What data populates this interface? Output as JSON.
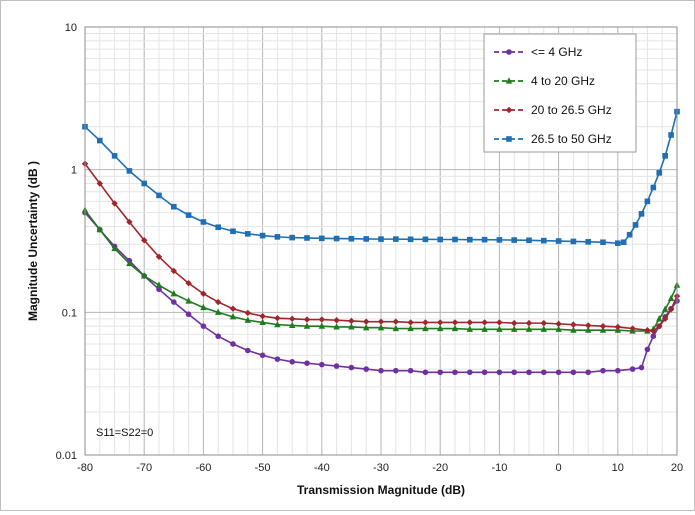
{
  "chart_data": {
    "type": "line",
    "xlabel": "Transmission  Magnitude  (dB)",
    "ylabel": "Magnitude  Uncertainty  (dB )",
    "xlim": [
      -80,
      20
    ],
    "ylim": [
      0.01,
      10
    ],
    "yscale": "log",
    "grid": true,
    "legend_position": "top-right",
    "x_ticks": [
      "-80",
      "-70",
      "-60",
      "-50",
      "-40",
      "-30",
      "-20",
      "-10",
      "0",
      "10",
      "20"
    ],
    "y_ticks": [
      "10",
      "1",
      "0.1",
      "0.01"
    ],
    "annotation": "S11=S22=0",
    "series": [
      {
        "name": "<= 4 GHz",
        "color": "#7030a0",
        "marker": "circle",
        "x": [
          -80,
          -77.5,
          -75,
          -72.5,
          -70,
          -67.5,
          -65,
          -62.5,
          -60,
          -57.5,
          -55,
          -52.5,
          -50,
          -47.5,
          -45,
          -42.5,
          -40,
          -37.5,
          -35,
          -32.5,
          -30,
          -27.5,
          -25,
          -22.5,
          -20,
          -17.5,
          -15,
          -12.5,
          -10,
          -7.5,
          -5,
          -2.5,
          0,
          2.5,
          5,
          7.5,
          10,
          12.5,
          14,
          15,
          16,
          17,
          18,
          19,
          20
        ],
        "values": [
          0.5,
          0.38,
          0.29,
          0.23,
          0.18,
          0.145,
          0.118,
          0.097,
          0.08,
          0.068,
          0.06,
          0.054,
          0.05,
          0.047,
          0.045,
          0.044,
          0.043,
          0.042,
          0.041,
          0.04,
          0.039,
          0.039,
          0.039,
          0.038,
          0.038,
          0.038,
          0.038,
          0.038,
          0.038,
          0.038,
          0.038,
          0.038,
          0.038,
          0.038,
          0.038,
          0.039,
          0.039,
          0.04,
          0.041,
          0.055,
          0.068,
          0.08,
          0.093,
          0.106,
          0.12
        ]
      },
      {
        "name": "4 to 20 GHz",
        "color": "#1e7b1e",
        "marker": "triangle",
        "x": [
          -80,
          -77.5,
          -75,
          -72.5,
          -70,
          -67.5,
          -65,
          -62.5,
          -60,
          -57.5,
          -55,
          -52.5,
          -50,
          -47.5,
          -45,
          -42.5,
          -40,
          -37.5,
          -35,
          -32.5,
          -30,
          -27.5,
          -25,
          -22.5,
          -20,
          -17.5,
          -15,
          -12.5,
          -10,
          -7.5,
          -5,
          -2.5,
          0,
          2.5,
          5,
          7.5,
          10,
          12.5,
          15,
          16,
          17,
          18,
          19,
          20
        ],
        "values": [
          0.52,
          0.38,
          0.28,
          0.22,
          0.18,
          0.155,
          0.135,
          0.12,
          0.108,
          0.1,
          0.093,
          0.088,
          0.085,
          0.082,
          0.081,
          0.08,
          0.08,
          0.079,
          0.079,
          0.078,
          0.078,
          0.077,
          0.077,
          0.077,
          0.077,
          0.077,
          0.076,
          0.076,
          0.076,
          0.076,
          0.076,
          0.076,
          0.076,
          0.075,
          0.075,
          0.075,
          0.075,
          0.074,
          0.074,
          0.076,
          0.09,
          0.105,
          0.125,
          0.155
        ]
      },
      {
        "name": "20 to 26.5 GHz",
        "color": "#a0262c",
        "marker": "diamond",
        "x": [
          -80,
          -77.5,
          -75,
          -72.5,
          -70,
          -67.5,
          -65,
          -62.5,
          -60,
          -57.5,
          -55,
          -52.5,
          -50,
          -47.5,
          -45,
          -42.5,
          -40,
          -37.5,
          -35,
          -32.5,
          -30,
          -27.5,
          -25,
          -22.5,
          -20,
          -17.5,
          -15,
          -12.5,
          -10,
          -7.5,
          -5,
          -2.5,
          0,
          2.5,
          5,
          7.5,
          10,
          12.5,
          15,
          16,
          17,
          18,
          19,
          20
        ],
        "values": [
          1.1,
          0.8,
          0.58,
          0.43,
          0.32,
          0.245,
          0.195,
          0.16,
          0.135,
          0.118,
          0.106,
          0.099,
          0.094,
          0.091,
          0.09,
          0.089,
          0.089,
          0.088,
          0.087,
          0.086,
          0.086,
          0.086,
          0.085,
          0.085,
          0.085,
          0.085,
          0.085,
          0.085,
          0.085,
          0.084,
          0.084,
          0.084,
          0.083,
          0.082,
          0.081,
          0.08,
          0.079,
          0.077,
          0.075,
          0.074,
          0.08,
          0.09,
          0.105,
          0.13
        ]
      },
      {
        "name": "26.5 to 50 GHz",
        "color": "#1f6fb4",
        "marker": "square",
        "x": [
          -80,
          -77.5,
          -75,
          -72.5,
          -70,
          -67.5,
          -65,
          -62.5,
          -60,
          -57.5,
          -55,
          -52.5,
          -50,
          -47.5,
          -45,
          -42.5,
          -40,
          -37.5,
          -35,
          -32.5,
          -30,
          -27.5,
          -25,
          -22.5,
          -20,
          -17.5,
          -15,
          -12.5,
          -10,
          -7.5,
          -5,
          -2.5,
          0,
          2.5,
          5,
          7.5,
          10,
          11,
          12,
          13,
          14,
          15,
          16,
          17,
          18,
          19,
          20
        ],
        "values": [
          2.0,
          1.6,
          1.25,
          0.98,
          0.8,
          0.66,
          0.55,
          0.48,
          0.43,
          0.395,
          0.37,
          0.355,
          0.345,
          0.338,
          0.334,
          0.332,
          0.33,
          0.329,
          0.328,
          0.327,
          0.326,
          0.326,
          0.325,
          0.325,
          0.324,
          0.324,
          0.323,
          0.323,
          0.322,
          0.321,
          0.32,
          0.318,
          0.316,
          0.314,
          0.312,
          0.31,
          0.305,
          0.31,
          0.35,
          0.41,
          0.49,
          0.6,
          0.75,
          0.95,
          1.25,
          1.75,
          2.55
        ]
      }
    ]
  }
}
